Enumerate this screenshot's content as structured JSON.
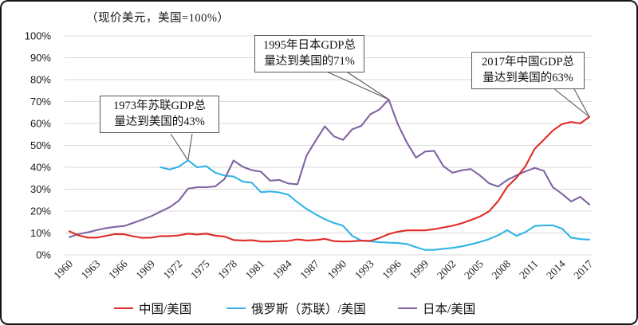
{
  "chart_data": {
    "type": "line",
    "title": "（现价美元，美国=100%）",
    "xlabel": "",
    "ylabel": "",
    "ylim": [
      0,
      100
    ],
    "y_tick_step": 10,
    "y_tick_format": "percent",
    "x_range": [
      1960,
      2017
    ],
    "x_ticks": [
      1960,
      1963,
      1966,
      1969,
      1972,
      1975,
      1978,
      1981,
      1984,
      1987,
      1990,
      1993,
      1996,
      1999,
      2002,
      2005,
      2008,
      2011,
      2014,
      2017
    ],
    "grid": "horizontal",
    "legend_position": "bottom",
    "series": [
      {
        "name": "俄罗斯（苏联）/美国",
        "color": "#33b3e6",
        "start_year": 1970,
        "values": [
          40.0,
          39.0,
          40.3,
          43.2,
          40.0,
          40.5,
          37.5,
          36.2,
          35.8,
          33.5,
          33.0,
          28.6,
          29.0,
          28.5,
          27.5,
          24.0,
          21.0,
          18.5,
          16.3,
          14.6,
          13.3,
          8.7,
          6.5,
          6.2,
          5.8,
          5.6,
          5.4,
          5.0,
          3.5,
          2.3,
          2.3,
          2.8,
          3.2,
          3.9,
          4.8,
          5.9,
          7.2,
          9.0,
          11.3,
          8.7,
          10.4,
          13.2,
          13.5,
          13.5,
          12.0,
          7.9,
          7.2,
          7.0
        ]
      },
      {
        "name": "日本/美国",
        "color": "#8064a2",
        "start_year": 1960,
        "values": [
          8.1,
          9.5,
          10.3,
          11.3,
          12.2,
          12.8,
          13.2,
          14.6,
          16.1,
          17.7,
          19.8,
          21.8,
          24.8,
          30.2,
          30.9,
          30.9,
          31.3,
          34.6,
          43.1,
          40.2,
          38.7,
          38.0,
          33.9,
          34.2,
          32.6,
          32.2,
          45.4,
          52.1,
          58.7,
          54.1,
          52.5,
          57.3,
          58.9,
          64.2,
          66.4,
          71.0,
          59.7,
          51.3,
          44.4,
          47.2,
          47.5,
          40.5,
          37.5,
          38.6,
          39.2,
          36.3,
          32.7,
          31.2,
          34.2,
          36.3,
          38.1,
          39.7,
          38.4,
          30.9,
          27.9,
          24.4,
          26.5,
          23.0
        ]
      },
      {
        "name": "中国/美国",
        "color": "#df2b26",
        "start_year": 1960,
        "values": [
          10.8,
          8.9,
          7.9,
          7.9,
          8.7,
          9.5,
          9.4,
          8.5,
          7.8,
          7.9,
          8.6,
          8.6,
          8.9,
          9.7,
          9.3,
          9.7,
          8.8,
          8.4,
          6.8,
          6.6,
          6.7,
          6.1,
          6.1,
          6.3,
          6.4,
          7.1,
          6.6,
          6.8,
          7.3,
          6.3,
          6.1,
          6.2,
          6.5,
          6.4,
          7.7,
          9.5,
          10.6,
          11.2,
          11.2,
          11.2,
          11.8,
          12.5,
          13.3,
          14.4,
          15.9,
          17.5,
          19.9,
          24.5,
          31.1,
          35.2,
          40.5,
          48.4,
          52.5,
          56.8,
          59.7,
          60.7,
          60.0,
          63.0
        ]
      }
    ],
    "annotations": [
      {
        "line1": "1973年苏联GDP总",
        "line2": "量达到美国的43%",
        "year": 1973,
        "value": 43.2
      },
      {
        "line1": "1995年日本GDP总",
        "line2": "量达到美国的71%",
        "year": 1995,
        "value": 71.0
      },
      {
        "line1": "2017年中国GDP总",
        "line2": "量达到美国的63%",
        "year": 2017,
        "value": 63.0
      }
    ],
    "colors": {
      "gridline": "#d9d9d9",
      "axis_text": "#1a1a1a",
      "callout_border": "#595959",
      "frame_border": "#151515"
    }
  },
  "legend": {
    "items": [
      {
        "label": "中国/美国",
        "series_index": 2
      },
      {
        "label": "俄罗斯（苏联）/美国",
        "series_index": 0
      },
      {
        "label": "日本/美国",
        "series_index": 1
      }
    ]
  }
}
